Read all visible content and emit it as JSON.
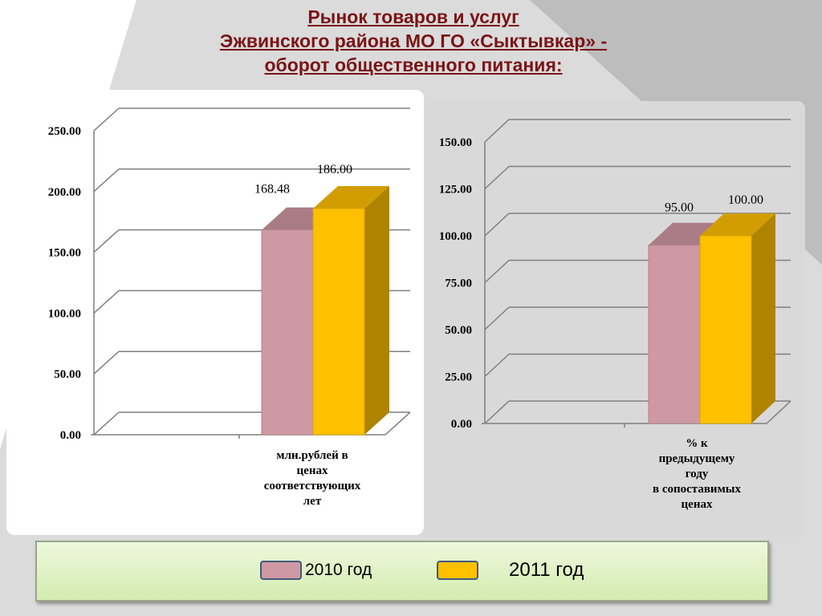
{
  "title_lines": [
    "Рынок товаров и услуг",
    "Эжвинского района МО ГО «Сыктывкар» -",
    "оборот общественного питания:"
  ],
  "colors": {
    "series_2010": "#cf99a3",
    "series_2011": "#ffc000",
    "title": "#7a1416"
  },
  "legend": {
    "label_2010": "2010 год",
    "label_2011": "2011 год"
  },
  "chart_data": [
    {
      "type": "bar",
      "categories": [
        "млн.рублей в ценах соответствующих лет"
      ],
      "category_lines": [
        "млн.рублей в",
        "ценах",
        "соответствующих",
        "лет"
      ],
      "series": [
        {
          "name": "2010 год",
          "values": [
            168.48
          ]
        },
        {
          "name": "2011 год",
          "values": [
            186.0
          ]
        }
      ],
      "data_labels": [
        "168.48",
        "186.00"
      ],
      "ylim": [
        0,
        250
      ],
      "yticks": [
        "0.00",
        "50.00",
        "100.00",
        "150.00",
        "200.00",
        "250.00"
      ],
      "grid": true
    },
    {
      "type": "bar",
      "categories": [
        "% к предыдущему году в сопоставимых ценах"
      ],
      "category_lines": [
        "% к",
        "предыдущему",
        "году",
        "в сопоставимых",
        "ценах"
      ],
      "series": [
        {
          "name": "2010 год",
          "values": [
            95.0
          ]
        },
        {
          "name": "2011 год",
          "values": [
            100.0
          ]
        }
      ],
      "data_labels": [
        "95.00",
        "100.00"
      ],
      "ylim": [
        0,
        150
      ],
      "yticks": [
        "0.00",
        "25.00",
        "50.00",
        "75.00",
        "100.00",
        "125.00",
        "150.00"
      ],
      "grid": true
    }
  ]
}
